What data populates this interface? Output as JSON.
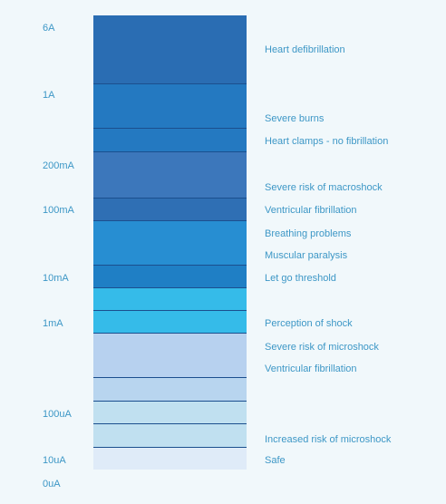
{
  "scale_labels": [
    "6A",
    "1A",
    "200mA",
    "100mA",
    "10mA",
    "1mA",
    "100uA",
    "10uA",
    "0uA"
  ],
  "effects": [
    "Heart defibrillation",
    "Severe burns",
    "Heart clamps - no fibrillation",
    "Severe risk of macroshock",
    "Ventricular fibrillation",
    "Breathing problems",
    "Muscular paralysis",
    "Let go threshold",
    "Perception of shock",
    "Severe risk of microshock",
    "Ventricular fibrillation",
    "Increased risk of microshock",
    "Safe"
  ],
  "colors": {
    "background": "#f1f8fb",
    "text": "#3d97c6",
    "divider": "#1b4f8e",
    "zone_amps_high": "#2a6db3",
    "zone_amps": "#2479c1",
    "zone_200mA": "#3c77bb",
    "zone_100mA": "#2f6fb4",
    "zone_breathing": "#278ed2",
    "zone_10mA": "#1f7fc5",
    "zone_perception": "#35bbe9",
    "zone_microshock": "#b7d1ef",
    "zone_microshock_low": "#b8d5ef",
    "zone_100uA": "#c0e0f0",
    "zone_safe": "#dfebf8"
  }
}
